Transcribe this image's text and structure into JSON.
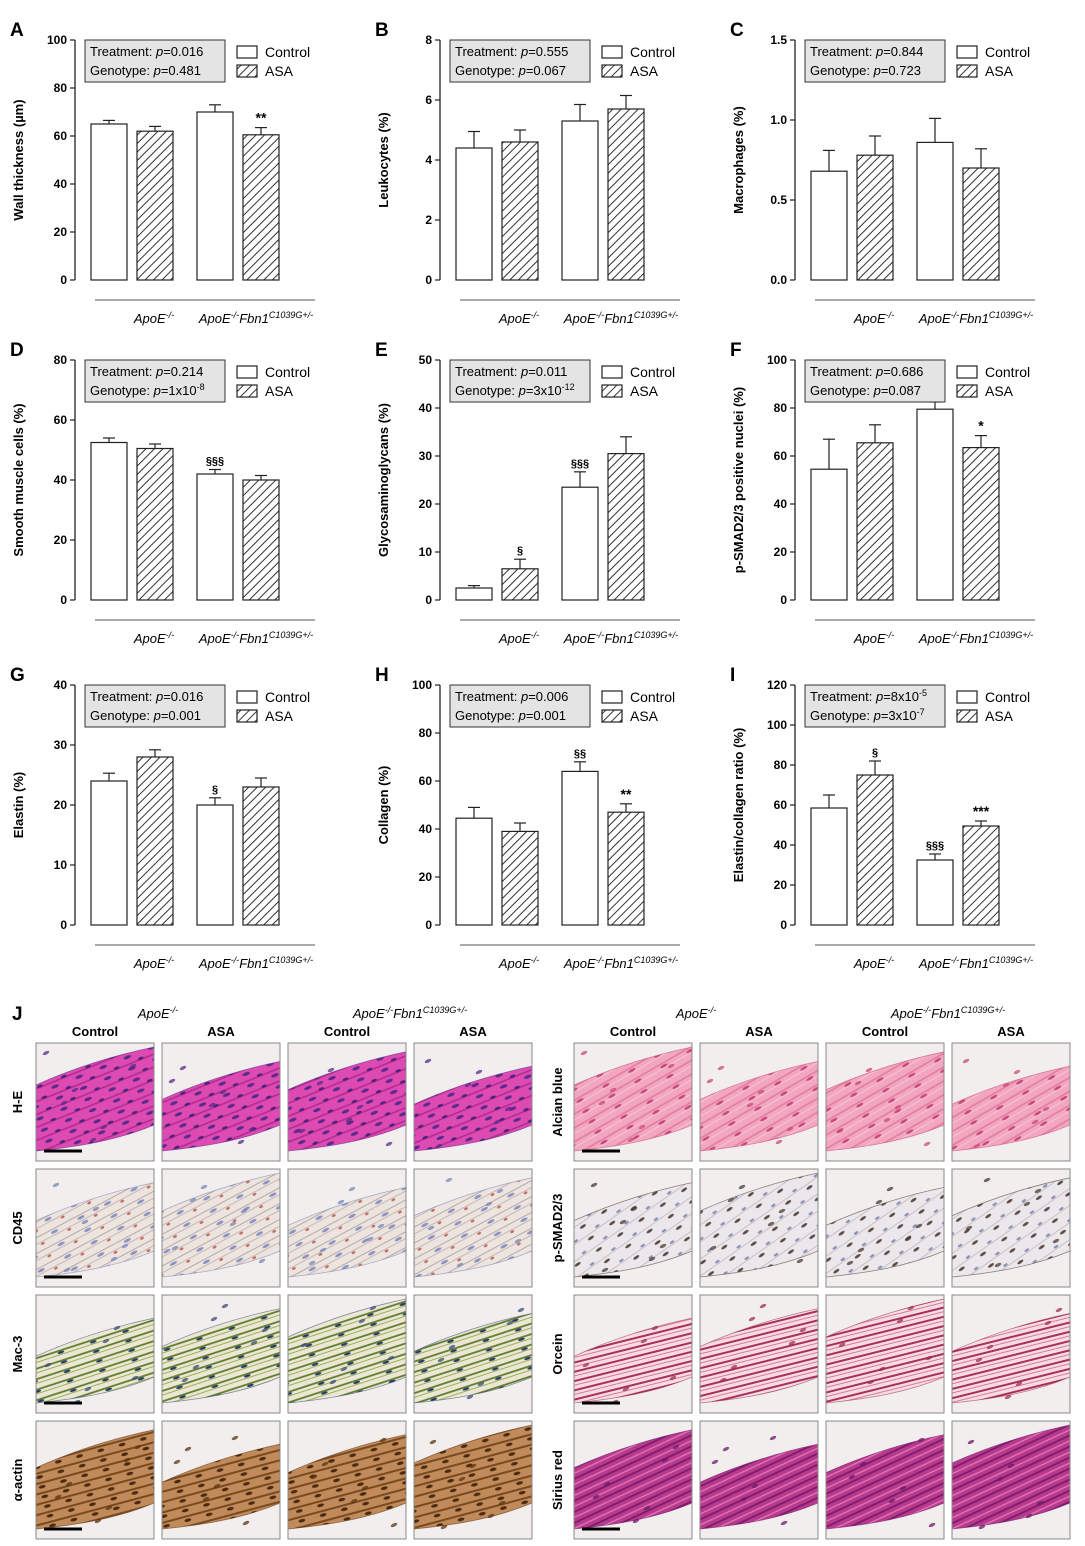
{
  "groups": [
    "ApoE-/-",
    "ApoE-/-Fbn1C1039G+/-"
  ],
  "legend": {
    "control": "Control",
    "asa": "ASA"
  },
  "chart_data": [
    {
      "panel": "A",
      "type": "bar",
      "ylabel": "Wall thickness (µm)",
      "ylim": [
        0,
        100
      ],
      "ticks": [
        0,
        20,
        40,
        60,
        80,
        100
      ],
      "stats": {
        "treatment_label": "Treatment:",
        "treatment_p": "p=0.016",
        "genotype_label": "Genotype:",
        "genotype_p": "p=0.481"
      },
      "series": [
        {
          "name": "Control",
          "values": [
            65,
            70
          ],
          "errors": [
            1.5,
            3
          ],
          "marks": [
            "",
            ""
          ]
        },
        {
          "name": "ASA",
          "values": [
            62,
            60.5
          ],
          "errors": [
            2,
            3
          ],
          "marks": [
            "",
            "**"
          ]
        }
      ]
    },
    {
      "panel": "B",
      "type": "bar",
      "ylabel": "Leukocytes (%)",
      "ylim": [
        0,
        8
      ],
      "ticks": [
        0,
        2,
        4,
        6,
        8
      ],
      "stats": {
        "treatment_label": "Treatment:",
        "treatment_p": "p=0.555",
        "genotype_label": "Genotype:",
        "genotype_p": "p=0.067"
      },
      "series": [
        {
          "name": "Control",
          "values": [
            4.4,
            5.3
          ],
          "errors": [
            0.55,
            0.55
          ],
          "marks": [
            "",
            ""
          ]
        },
        {
          "name": "ASA",
          "values": [
            4.6,
            5.7
          ],
          "errors": [
            0.4,
            0.45
          ],
          "marks": [
            "",
            ""
          ]
        }
      ]
    },
    {
      "panel": "C",
      "type": "bar",
      "ylabel": "Macrophages (%)",
      "ylim": [
        0,
        1.5
      ],
      "ticks": [
        0.0,
        0.5,
        1.0,
        1.5
      ],
      "decimals": 1,
      "stats": {
        "treatment_label": "Treatment:",
        "treatment_p": "p=0.844",
        "genotype_label": "Genotype:",
        "genotype_p": "p=0.723"
      },
      "series": [
        {
          "name": "Control",
          "values": [
            0.68,
            0.86
          ],
          "errors": [
            0.13,
            0.15
          ],
          "marks": [
            "",
            ""
          ]
        },
        {
          "name": "ASA",
          "values": [
            0.78,
            0.7
          ],
          "errors": [
            0.12,
            0.12
          ],
          "marks": [
            "",
            ""
          ]
        }
      ]
    },
    {
      "panel": "D",
      "type": "bar",
      "ylabel": "Smooth muscle cells (%)",
      "ylim": [
        0,
        80
      ],
      "ticks": [
        0,
        20,
        40,
        60,
        80
      ],
      "stats": {
        "treatment_label": "Treatment:",
        "treatment_p": "p=0.214",
        "genotype_label": "Genotype:",
        "genotype_p": "p=1x10",
        "genotype_exp": "-8"
      },
      "series": [
        {
          "name": "Control",
          "values": [
            52.5,
            42
          ],
          "errors": [
            1.5,
            1.5
          ],
          "marks": [
            "",
            "§§§"
          ]
        },
        {
          "name": "ASA",
          "values": [
            50.5,
            40
          ],
          "errors": [
            1.5,
            1.5
          ],
          "marks": [
            "",
            ""
          ]
        }
      ]
    },
    {
      "panel": "E",
      "type": "bar",
      "ylabel": "Glycosaminoglycans (%)",
      "ylim": [
        0,
        50
      ],
      "ticks": [
        0,
        10,
        20,
        30,
        40,
        50
      ],
      "stats": {
        "treatment_label": "Treatment:",
        "treatment_p": "p=0.011",
        "genotype_label": "Genotype:",
        "genotype_p": "p=3x10",
        "genotype_exp": "-12"
      },
      "series": [
        {
          "name": "Control",
          "values": [
            2.5,
            23.5
          ],
          "errors": [
            0.5,
            3.2
          ],
          "marks": [
            "",
            "§§§"
          ]
        },
        {
          "name": "ASA",
          "values": [
            6.5,
            30.5
          ],
          "errors": [
            2,
            3.5
          ],
          "marks": [
            "§",
            ""
          ]
        }
      ]
    },
    {
      "panel": "F",
      "type": "bar",
      "ylabel": "p-SMAD2/3 positive nuclei (%)",
      "ylim": [
        0,
        100
      ],
      "ticks": [
        0,
        20,
        40,
        60,
        80,
        100
      ],
      "stats": {
        "treatment_label": "Treatment:",
        "treatment_p": "p=0.686",
        "genotype_label": "Genotype:",
        "genotype_p": "p=0.087"
      },
      "series": [
        {
          "name": "Control",
          "values": [
            54.5,
            79.5
          ],
          "errors": [
            12.5,
            3
          ],
          "marks": [
            "",
            "§"
          ]
        },
        {
          "name": "ASA",
          "values": [
            65.5,
            63.5
          ],
          "errors": [
            7.5,
            5
          ],
          "marks": [
            "",
            "*"
          ]
        }
      ]
    },
    {
      "panel": "G",
      "type": "bar",
      "ylabel": "Elastin (%)",
      "ylim": [
        0,
        40
      ],
      "ticks": [
        0,
        10,
        20,
        30,
        40
      ],
      "stats": {
        "treatment_label": "Treatment:",
        "treatment_p": "p=0.016",
        "genotype_label": "Genotype:",
        "genotype_p": "p=0.001"
      },
      "series": [
        {
          "name": "Control",
          "values": [
            24,
            20
          ],
          "errors": [
            1.3,
            1.2
          ],
          "marks": [
            "",
            "§"
          ]
        },
        {
          "name": "ASA",
          "values": [
            28,
            23
          ],
          "errors": [
            1.2,
            1.5
          ],
          "marks": [
            "",
            ""
          ]
        }
      ]
    },
    {
      "panel": "H",
      "type": "bar",
      "ylabel": "Collagen (%)",
      "ylim": [
        0,
        100
      ],
      "ticks": [
        0,
        20,
        40,
        60,
        80,
        100
      ],
      "stats": {
        "treatment_label": "Treatment:",
        "treatment_p": "p=0.006",
        "genotype_label": "Genotype:",
        "genotype_p": "p=0.001"
      },
      "series": [
        {
          "name": "Control",
          "values": [
            44.5,
            64
          ],
          "errors": [
            4.5,
            4
          ],
          "marks": [
            "",
            "§§"
          ]
        },
        {
          "name": "ASA",
          "values": [
            39,
            47
          ],
          "errors": [
            3.5,
            3.5
          ],
          "marks": [
            "",
            "**"
          ]
        }
      ]
    },
    {
      "panel": "I",
      "type": "bar",
      "ylabel": "Elastin/collagen ratio (%)",
      "ylim": [
        0,
        120
      ],
      "ticks": [
        0,
        20,
        40,
        60,
        80,
        100,
        120
      ],
      "stats": {
        "treatment_label": "Treatment:",
        "treatment_p": "p=8x10",
        "treatment_exp": "-5",
        "genotype_label": "Genotype:",
        "genotype_p": "p=3x10",
        "genotype_exp": "-7"
      },
      "series": [
        {
          "name": "Control",
          "values": [
            58.5,
            32.5
          ],
          "errors": [
            6.5,
            3
          ],
          "marks": [
            "",
            "§§§"
          ]
        },
        {
          "name": "ASA",
          "values": [
            75,
            49.5
          ],
          "errors": [
            7,
            2.5
          ],
          "marks": [
            "§",
            "***"
          ]
        }
      ]
    }
  ],
  "histology": {
    "panel_label": "J",
    "left": {
      "group_labels": [
        "ApoE-/-",
        "ApoE-/-Fbn1C1039G+/-"
      ],
      "column_labels": [
        "Control",
        "ASA",
        "Control",
        "ASA"
      ],
      "row_labels": [
        "H-E",
        "CD45",
        "Mac-3",
        "α-actin"
      ],
      "stain_colors": [
        "#d94ab0",
        "#e6ddd8",
        "#e0d8c6",
        "#c99a6e"
      ],
      "nuclei_colors": [
        "#5a2a8a",
        "#7a86b8",
        "#3a4c7a",
        "#5a3412"
      ]
    },
    "right": {
      "group_labels": [
        "ApoE-/-",
        "ApoE-/-Fbn1C1039G+/-"
      ],
      "column_labels": [
        "Control",
        "ASA",
        "Control",
        "ASA"
      ],
      "row_labels": [
        "Alcian blue",
        "p-SMAD2/3",
        "Orcein",
        "Sirius red"
      ],
      "stain_colors": [
        "#f0a8c0",
        "#e8e4e6",
        "#f2d4dc",
        "#b23a8a"
      ],
      "nuclei_colors": [
        "#c84a78",
        "#4a3a34",
        "#9a3050",
        "#6a1a6a"
      ]
    }
  }
}
